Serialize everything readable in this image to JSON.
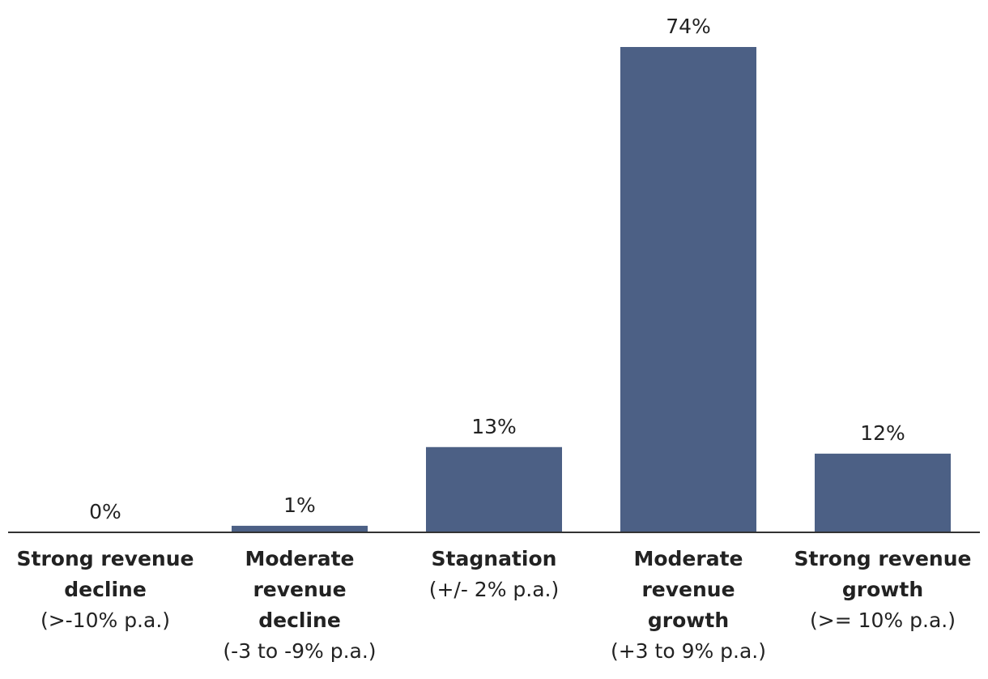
{
  "chart_data": {
    "type": "bar",
    "title": "",
    "xlabel": "",
    "ylabel": "",
    "unit": "%",
    "ylim": [
      0,
      74
    ],
    "grid": false,
    "legend": "none",
    "bar_color": "#4c6085",
    "axis_color": "#333333",
    "categories": [
      "Strong revenue decline (>-10% p.a.)",
      "Moderate revenue decline (-3 to -9% p.a.)",
      "Stagnation (+/- 2% p.a.)",
      "Moderate revenue growth (+3 to 9% p.a.)",
      "Strong revenue growth (>= 10% p.a.)"
    ],
    "category_lines": [
      {
        "bold": [
          "Strong revenue",
          "decline"
        ],
        "sub": [
          "(>-10% p.a.)"
        ]
      },
      {
        "bold": [
          "Moderate",
          "revenue",
          "decline"
        ],
        "sub": [
          "(-3 to -9% p.a.)"
        ]
      },
      {
        "bold": [
          "Stagnation"
        ],
        "sub": [
          "(+/- 2% p.a.)"
        ]
      },
      {
        "bold": [
          "Moderate",
          "revenue",
          "growth"
        ],
        "sub": [
          "(+3 to 9% p.a.)"
        ]
      },
      {
        "bold": [
          "Strong revenue",
          "growth"
        ],
        "sub": [
          "(>= 10% p.a.)"
        ]
      }
    ],
    "values": [
      0,
      1,
      13,
      74,
      12
    ],
    "value_labels": [
      "0%",
      "1%",
      "13%",
      "74%",
      "12%"
    ]
  }
}
